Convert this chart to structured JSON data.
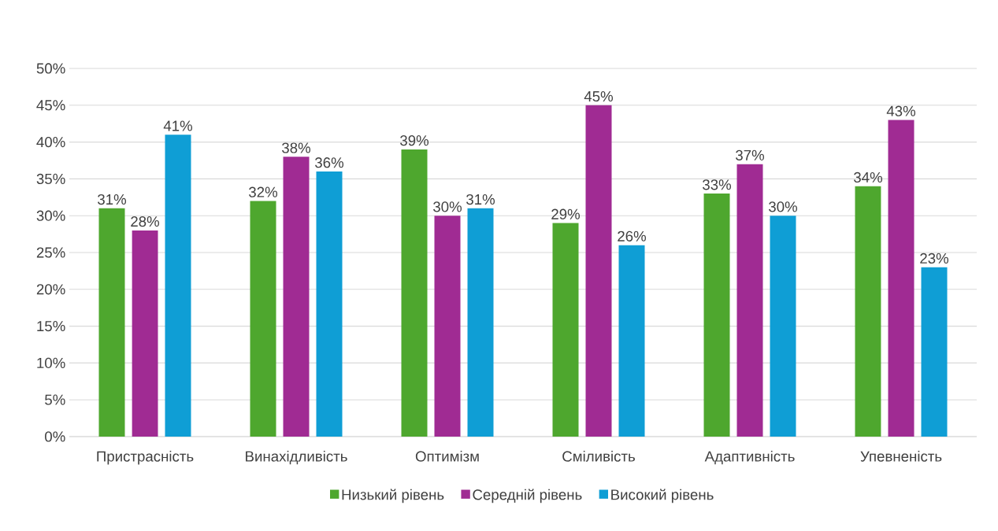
{
  "chart_data": {
    "type": "bar",
    "categories": [
      "Пристрасність",
      "Винахідливість",
      "Оптимізм",
      "Сміливість",
      "Адаптивність",
      "Упевненість"
    ],
    "series": [
      {
        "name": "Низький рівень",
        "color": "#4ea72e",
        "values": [
          31,
          32,
          39,
          29,
          33,
          34
        ],
        "value_labels": [
          "31%",
          "32%",
          "39%",
          "29%",
          "33%",
          "34%"
        ]
      },
      {
        "name": "Середній рівень",
        "color": "#a02b93",
        "values": [
          28,
          38,
          30,
          45,
          37,
          43
        ],
        "value_labels": [
          "28%",
          "38%",
          "30%",
          "45%",
          "37%",
          "43%"
        ]
      },
      {
        "name": "Високий рівень",
        "color": "#0f9ed5",
        "values": [
          41,
          36,
          31,
          26,
          30,
          23
        ],
        "value_labels": [
          "41%",
          "36%",
          "31%",
          "26%",
          "30%",
          "23%"
        ]
      }
    ],
    "ylim": [
      0,
      50
    ],
    "yticks": [
      {
        "value": 0,
        "label": "0%"
      },
      {
        "value": 5,
        "label": "5%"
      },
      {
        "value": 10,
        "label": "10%"
      },
      {
        "value": 15,
        "label": "15%"
      },
      {
        "value": 20,
        "label": "20%"
      },
      {
        "value": 25,
        "label": "25%"
      },
      {
        "value": 30,
        "label": "30%"
      },
      {
        "value": 35,
        "label": "35%"
      },
      {
        "value": 40,
        "label": "40%"
      },
      {
        "value": 45,
        "label": "45%"
      },
      {
        "value": 50,
        "label": "50%"
      }
    ],
    "grid": "y",
    "legend": "bottom"
  }
}
